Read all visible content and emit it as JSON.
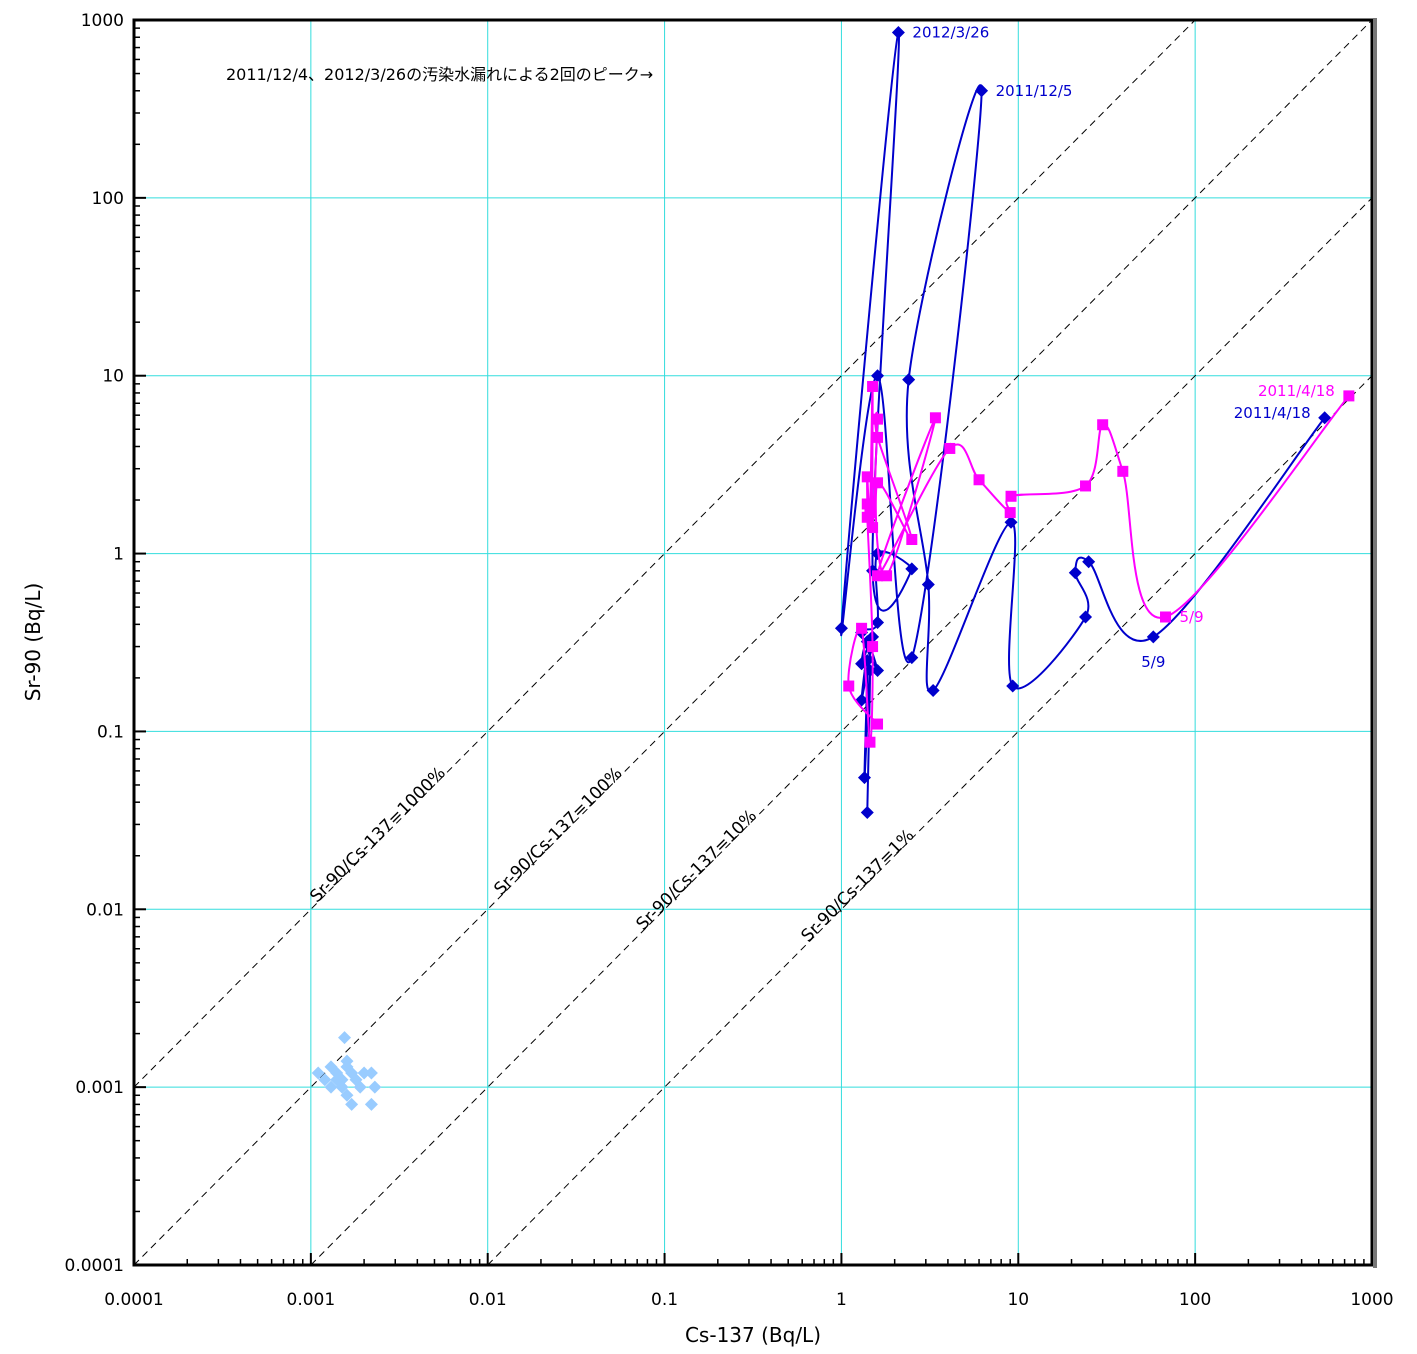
{
  "chart_data": {
    "type": "scatter",
    "title": "",
    "xlabel": "Cs-137 (Bq/L)",
    "ylabel": "Sr-90 (Bq/L)",
    "xscale": "log",
    "yscale": "log",
    "xlim": [
      0.0001,
      1000
    ],
    "ylim": [
      0.0001,
      1000
    ],
    "grid": true,
    "legend": "none",
    "x_ticks": [
      "0.0001",
      "0.001",
      "0.01",
      "0.1",
      "1",
      "10",
      "100",
      "1000"
    ],
    "y_ticks": [
      "0.0001",
      "0.001",
      "0.01",
      "0.1",
      "1",
      "10",
      "100",
      "1000"
    ],
    "ratio_lines": [
      {
        "label": "Sr-90/Cs-137=1000%",
        "ratio": 10
      },
      {
        "label": "Sr-90/Cs-137=100%",
        "ratio": 1
      },
      {
        "label": "Sr-90/Cs-137=10%",
        "ratio": 0.1
      },
      {
        "label": "Sr-90/Cs-137=1%",
        "ratio": 0.01
      }
    ],
    "note": "2011/12/4、2012/3/26の汚染水漏れによる2回のピーク→",
    "colors": {
      "blue": "#0000cc",
      "magenta": "#ff00ff",
      "lightblue": "#99ccff",
      "grid": "#33dddd",
      "ratio_line": "#000000"
    },
    "series": [
      {
        "marker": "diamond",
        "color": "#0000cc",
        "connected": true,
        "points": [
          [
            540,
            5.8
          ],
          [
            58,
            0.34
          ],
          [
            25,
            0.9
          ],
          [
            21,
            0.78
          ],
          [
            24,
            0.44
          ],
          [
            9.3,
            0.18
          ],
          [
            9.1,
            1.5
          ],
          [
            3.3,
            0.17
          ],
          [
            3.1,
            0.67
          ],
          [
            2.4,
            9.5
          ],
          [
            6.2,
            400
          ],
          [
            2.5,
            0.26
          ],
          [
            1.6,
            10
          ],
          [
            1.0,
            0.38
          ],
          [
            2.1,
            850
          ],
          [
            1.5,
            0.8
          ],
          [
            2.5,
            0.82
          ],
          [
            1.6,
            1.0
          ],
          [
            1.6,
            0.41
          ],
          [
            1.3,
            0.36
          ],
          [
            1.6,
            0.22
          ],
          [
            1.4,
            0.32
          ],
          [
            1.3,
            0.24
          ],
          [
            1.5,
            0.34
          ],
          [
            1.3,
            0.15
          ],
          [
            1.4,
            0.25
          ],
          [
            1.35,
            0.055
          ],
          [
            1.45,
            0.22
          ],
          [
            1.4,
            0.035
          ]
        ]
      },
      {
        "marker": "square",
        "color": "#ff00ff",
        "connected": true,
        "points": [
          [
            740,
            7.7
          ],
          [
            68,
            0.44
          ],
          [
            39,
            2.9
          ],
          [
            30,
            5.3
          ],
          [
            24,
            2.4
          ],
          [
            9.1,
            2.1
          ],
          [
            9.0,
            1.7
          ],
          [
            6.0,
            2.6
          ],
          [
            4.1,
            3.9
          ],
          [
            1.6,
            0.75
          ],
          [
            3.4,
            5.8
          ],
          [
            1.8,
            0.75
          ],
          [
            1.6,
            2.5
          ],
          [
            2.5,
            1.2
          ],
          [
            1.6,
            4.5
          ],
          [
            1.6,
            5.7
          ],
          [
            1.5,
            1.4
          ],
          [
            1.5,
            8.7
          ],
          [
            1.45,
            1.7
          ],
          [
            1.4,
            2.7
          ],
          [
            1.4,
            1.9
          ],
          [
            1.4,
            1.6
          ],
          [
            1.5,
            0.3
          ],
          [
            1.45,
            0.087
          ],
          [
            1.3,
            0.38
          ],
          [
            1.1,
            0.18
          ],
          [
            1.6,
            0.11
          ]
        ]
      },
      {
        "marker": "diamond",
        "color": "#99ccff",
        "connected": false,
        "points": [
          [
            0.00155,
            0.0019
          ],
          [
            0.0011,
            0.0012
          ],
          [
            0.0013,
            0.0013
          ],
          [
            0.0012,
            0.0011
          ],
          [
            0.0014,
            0.0012
          ],
          [
            0.0015,
            0.0011
          ],
          [
            0.0016,
            0.0014
          ],
          [
            0.0015,
            0.001
          ],
          [
            0.0013,
            0.001
          ],
          [
            0.0017,
            0.0012
          ],
          [
            0.0016,
            0.0009
          ],
          [
            0.0018,
            0.0011
          ],
          [
            0.002,
            0.0012
          ],
          [
            0.0019,
            0.001
          ],
          [
            0.0017,
            0.0008
          ],
          [
            0.0022,
            0.0012
          ],
          [
            0.0023,
            0.001
          ],
          [
            0.0022,
            0.0008
          ],
          [
            0.0014,
            0.0011
          ],
          [
            0.0016,
            0.0013
          ]
        ]
      }
    ],
    "annotations": [
      {
        "text": "2012/3/26",
        "x": 2.1,
        "y": 850,
        "color": "#0000cc",
        "side": "right"
      },
      {
        "text": "2011/12/5",
        "x": 6.2,
        "y": 400,
        "color": "#0000cc",
        "side": "right"
      },
      {
        "text": "2011/4/18",
        "x": 740,
        "y": 7.7,
        "color": "#ff00ff",
        "side": "left"
      },
      {
        "text": "2011/4/18",
        "x": 540,
        "y": 5.8,
        "color": "#0000cc",
        "side": "left"
      },
      {
        "text": "5/9",
        "x": 68,
        "y": 0.44,
        "color": "#ff00ff",
        "side": "right"
      },
      {
        "text": "5/9",
        "x": 58,
        "y": 0.34,
        "color": "#0000cc",
        "side": "below"
      }
    ]
  }
}
